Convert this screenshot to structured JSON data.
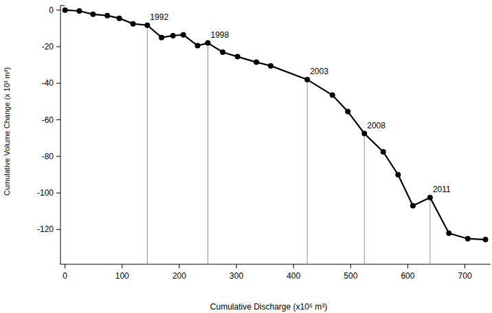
{
  "chart_data": {
    "type": "line",
    "x_label": "Cumulative Discharge (x10⁶ m³)",
    "y_label": "Cumulative Volume Change (x 10³ m³)",
    "x": [
      0,
      25,
      49,
      74,
      95,
      119,
      144,
      169,
      189,
      207,
      232,
      250,
      276,
      302,
      335,
      360,
      424,
      468,
      495,
      524,
      557,
      583,
      609,
      639,
      672,
      705,
      736
    ],
    "series": [
      {
        "name": "Cumulative Volume Change",
        "color": "#000000",
        "marker": "circle",
        "line_style": "solid",
        "values": [
          0,
          -0.5,
          -2.3,
          -3,
          -4.5,
          -7.5,
          -8.3,
          -15,
          -14,
          -13.5,
          -19.5,
          -18,
          -23,
          -25.5,
          -28.5,
          -30.5,
          -38,
          -46.5,
          -55.5,
          -67.5,
          -77.5,
          -90,
          -107,
          -102.5,
          -122,
          -125,
          -125.5
        ]
      }
    ],
    "annotations": [
      {
        "label": "1992",
        "x": 144,
        "y": -8.3
      },
      {
        "label": "1998",
        "x": 250,
        "y": -18
      },
      {
        "label": "2003",
        "x": 424,
        "y": -38
      },
      {
        "label": "2008",
        "x": 524,
        "y": -67.5
      },
      {
        "label": "2011",
        "x": 639,
        "y": -102.5
      }
    ],
    "xlim": [
      -8,
      745
    ],
    "ylim": [
      -139,
      2.5
    ],
    "xticks": [
      0,
      100,
      200,
      300,
      400,
      500,
      600,
      700
    ],
    "yticks": [
      -120,
      -100,
      -80,
      -60,
      -40,
      -20,
      0
    ],
    "grid": false
  }
}
